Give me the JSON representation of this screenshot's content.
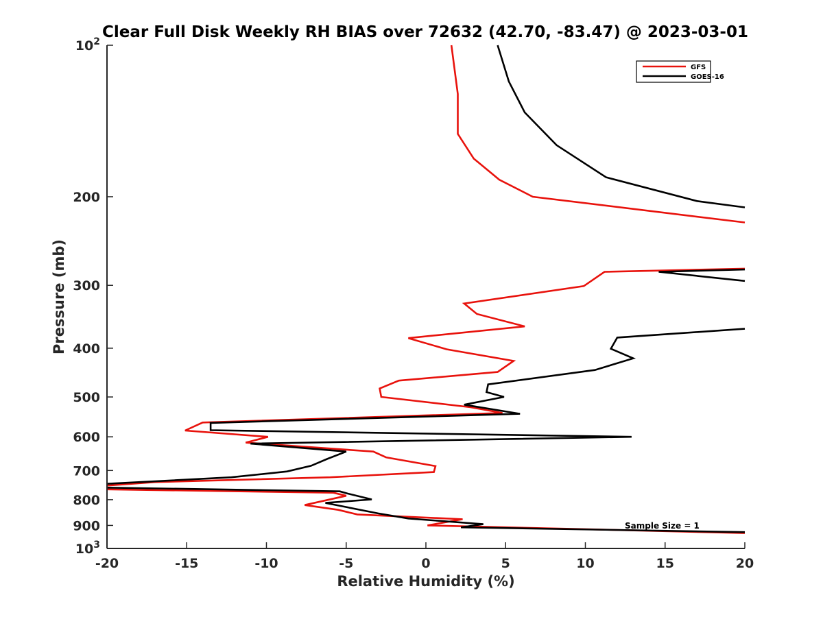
{
  "chart_data": {
    "type": "line",
    "title": "Clear Full Disk Weekly RH BIAS over 72632 (42.70, -83.47) @ 2023-03-01",
    "xlabel": "Relative Humidity (%)",
    "ylabel": "Pressure (mb)",
    "xlim": [
      -20,
      20
    ],
    "ylim": [
      100,
      1000
    ],
    "y_scale": "log",
    "y_reversed": true,
    "grid": false,
    "legend_position": "top-right",
    "x_ticks": [
      {
        "value": -20,
        "label": "-20"
      },
      {
        "value": -15,
        "label": "-15"
      },
      {
        "value": -10,
        "label": "-10"
      },
      {
        "value": -5,
        "label": "-5"
      },
      {
        "value": 0,
        "label": "0"
      },
      {
        "value": 5,
        "label": "5"
      },
      {
        "value": 10,
        "label": "10"
      },
      {
        "value": 15,
        "label": "15"
      },
      {
        "value": 20,
        "label": "20"
      }
    ],
    "y_ticks": [
      {
        "value": 100,
        "label": "10",
        "sup": "2"
      },
      {
        "value": 200,
        "label": "200"
      },
      {
        "value": 300,
        "label": "300"
      },
      {
        "value": 400,
        "label": "400"
      },
      {
        "value": 500,
        "label": "500"
      },
      {
        "value": 600,
        "label": "600"
      },
      {
        "value": 700,
        "label": "700"
      },
      {
        "value": 800,
        "label": "800"
      },
      {
        "value": 900,
        "label": "900"
      },
      {
        "value": 1000,
        "label": "10",
        "sup": "3"
      }
    ],
    "annotation": "Sample Size = 1",
    "series": [
      {
        "name": "GFS",
        "color": "#e8120c",
        "points": [
          [
            1.6,
            100
          ],
          [
            2.0,
            125
          ],
          [
            2.0,
            150
          ],
          [
            3.0,
            168
          ],
          [
            4.6,
            185
          ],
          [
            6.7,
            200
          ],
          [
            20.0,
            225
          ],
          [
            null,
            null
          ],
          [
            20.0,
            278
          ],
          [
            11.2,
            282
          ],
          [
            9.9,
            301
          ],
          [
            2.4,
            326
          ],
          [
            3.2,
            342
          ],
          [
            6.2,
            362
          ],
          [
            -1.1,
            382
          ],
          [
            1.3,
            402
          ],
          [
            5.5,
            424
          ],
          [
            4.5,
            446
          ],
          [
            -1.7,
            464
          ],
          [
            -2.9,
            481
          ],
          [
            -2.8,
            500
          ],
          [
            2.8,
            524
          ],
          [
            4.8,
            538
          ],
          [
            -14.0,
            562
          ],
          [
            -15.1,
            583
          ],
          [
            -9.9,
            600
          ],
          [
            -11.3,
            616
          ],
          [
            -3.3,
            642
          ],
          [
            -2.5,
            659
          ],
          [
            0.6,
            686
          ],
          [
            0.5,
            705
          ],
          [
            -6.0,
            722
          ],
          [
            -17.0,
            738
          ],
          [
            -20.0,
            750
          ],
          [
            null,
            null
          ],
          [
            -20.0,
            763
          ],
          [
            -5.8,
            775
          ],
          [
            -5.0,
            786
          ],
          [
            -7.6,
            820
          ],
          [
            -5.5,
            838
          ],
          [
            -4.3,
            856
          ],
          [
            2.3,
            875
          ],
          [
            0.1,
            900
          ],
          [
            20.0,
            932
          ]
        ]
      },
      {
        "name": "GOES-16",
        "color": "#000000",
        "points": [
          [
            4.5,
            100
          ],
          [
            5.2,
            118
          ],
          [
            6.2,
            136
          ],
          [
            8.2,
            158
          ],
          [
            11.3,
            183
          ],
          [
            17.0,
            204
          ],
          [
            20.0,
            210
          ],
          [
            null,
            null
          ],
          [
            20.0,
            279
          ],
          [
            14.6,
            282
          ],
          [
            20.0,
            294
          ],
          [
            null,
            null
          ],
          [
            20.0,
            366
          ],
          [
            12.0,
            381
          ],
          [
            11.6,
            401
          ],
          [
            13.0,
            419
          ],
          [
            10.6,
            442
          ],
          [
            3.9,
            472
          ],
          [
            3.8,
            489
          ],
          [
            4.9,
            500
          ],
          [
            2.4,
            518
          ],
          [
            5.9,
            540
          ],
          [
            -13.5,
            563
          ],
          [
            -13.5,
            582
          ],
          [
            12.9,
            600
          ],
          [
            -11.0,
            619
          ],
          [
            -5.0,
            642
          ],
          [
            -6.2,
            664
          ],
          [
            -7.2,
            685
          ],
          [
            -8.7,
            703
          ],
          [
            -12.2,
            722
          ],
          [
            -20.0,
            744
          ],
          [
            null,
            null
          ],
          [
            -20.0,
            757
          ],
          [
            -5.4,
            770
          ],
          [
            -4.9,
            778
          ],
          [
            -3.4,
            799
          ],
          [
            -6.3,
            812
          ],
          [
            -3.0,
            852
          ],
          [
            -1.1,
            872
          ],
          [
            3.6,
            895
          ],
          [
            2.2,
            908
          ],
          [
            20.0,
            928
          ]
        ]
      }
    ]
  }
}
